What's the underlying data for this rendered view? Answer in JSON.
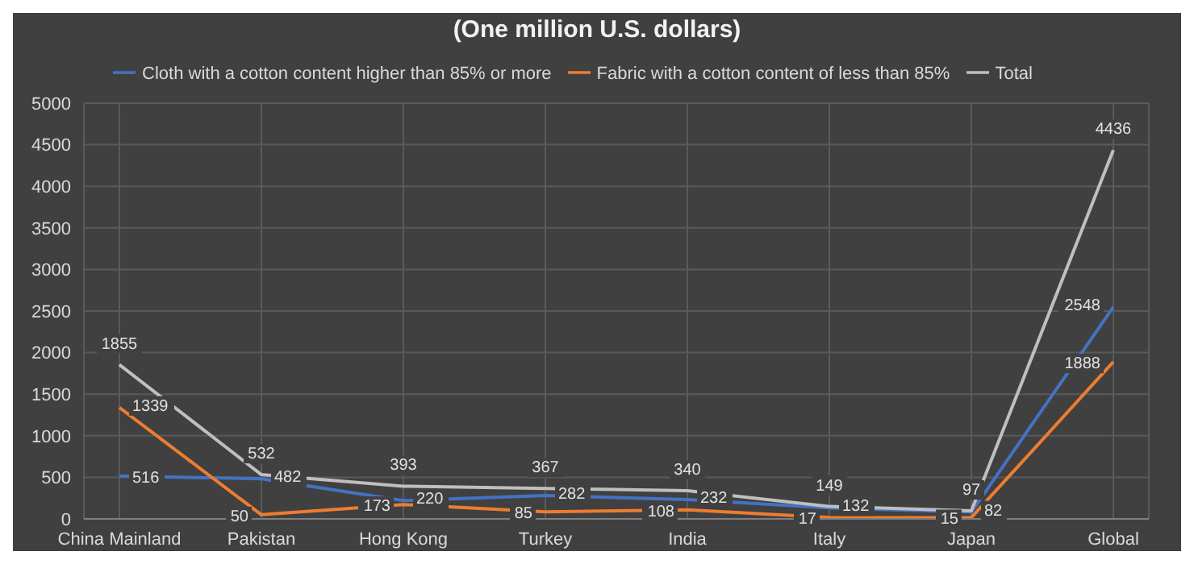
{
  "chart_data": {
    "type": "line",
    "title": "(One million U.S. dollars)",
    "categories": [
      "China Mainland",
      "Pakistan",
      "Hong Kong",
      "Turkey",
      "India",
      "Italy",
      "Japan",
      "Global"
    ],
    "series": [
      {
        "name": "Cloth with a cotton content higher than 85% or more",
        "color": "#4472c4",
        "values": [
          516,
          482,
          220,
          282,
          232,
          132,
          82,
          2548
        ]
      },
      {
        "name": "Fabric with a cotton content of less than 85%",
        "color": "#ed7d31",
        "values": [
          1339,
          50,
          173,
          85,
          108,
          17,
          15,
          1888
        ]
      },
      {
        "name": "Total",
        "color": "#bfbfbf",
        "values": [
          1855,
          532,
          393,
          367,
          340,
          149,
          97,
          4436
        ]
      }
    ],
    "ylim": [
      0,
      5000
    ],
    "yticks": [
      0,
      500,
      1000,
      1500,
      2000,
      2500,
      3000,
      3500,
      4000,
      4500,
      5000
    ],
    "grid": true,
    "legend": "top",
    "data_labels": true,
    "marker": "none"
  }
}
